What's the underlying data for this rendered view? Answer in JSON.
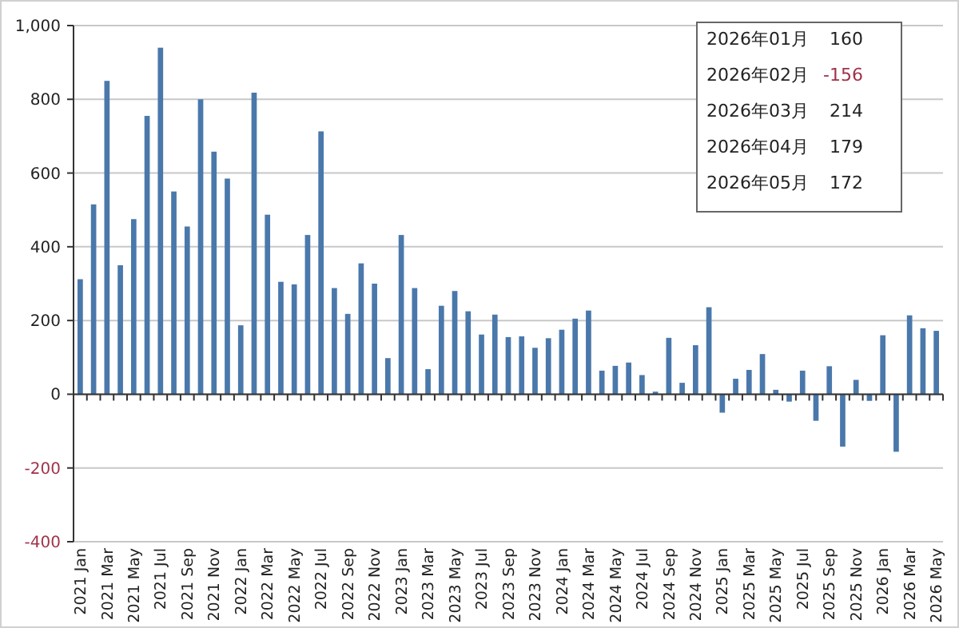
{
  "chart_data": {
    "type": "bar",
    "categories": [
      "2021 Jan",
      null,
      "2021 Mar",
      null,
      "2021 May",
      null,
      "2021 Jul",
      null,
      "2021 Sep",
      null,
      "2021 Nov",
      null,
      "2022 Jan",
      null,
      "2022 Mar",
      null,
      "2022 May",
      null,
      "2022 Jul",
      null,
      "2022 Sep",
      null,
      "2022 Nov",
      null,
      "2023 Jan",
      null,
      "2023 Mar",
      null,
      "2023 May",
      null,
      "2023 Jul",
      null,
      "2023 Sep",
      null,
      "2023 Nov",
      null,
      "2024 Jan",
      null,
      "2024 Mar",
      null,
      "2024 May",
      null,
      "2024 Jul",
      null,
      "2024 Sep",
      null,
      "2024 Nov",
      null,
      "2025 Jan",
      null,
      "2025 Mar",
      null,
      "2025 May",
      null,
      "2025 Jul",
      null,
      "2025 Sep",
      null,
      "2025 Nov",
      null,
      "2026 Jan",
      null,
      "2026 Mar",
      null,
      "2026 May"
    ],
    "values": [
      312,
      515,
      850,
      350,
      475,
      755,
      940,
      550,
      455,
      800,
      658,
      585,
      187,
      818,
      487,
      305,
      298,
      432,
      713,
      288,
      218,
      355,
      300,
      98,
      432,
      288,
      68,
      240,
      280,
      225,
      162,
      216,
      155,
      157,
      126,
      152,
      175,
      205,
      227,
      64,
      77,
      86,
      52,
      7,
      153,
      31,
      133,
      236,
      -50,
      42,
      66,
      109,
      12,
      -20,
      64,
      -72,
      76,
      -142,
      39,
      -18,
      160,
      -156,
      214,
      179,
      172
    ],
    "color": "#4a78ab",
    "ylim": [
      -400,
      1000
    ],
    "yticks": [
      -400,
      -200,
      0,
      200,
      400,
      600,
      800,
      {
        "value": 1000,
        "label": "1,000"
      }
    ],
    "grid": "y",
    "annotations": [
      "2026年01月 160",
      "2026年02月 -156",
      "2026年03月 214",
      "2026年04月 179",
      "2026年05月 172"
    ]
  }
}
